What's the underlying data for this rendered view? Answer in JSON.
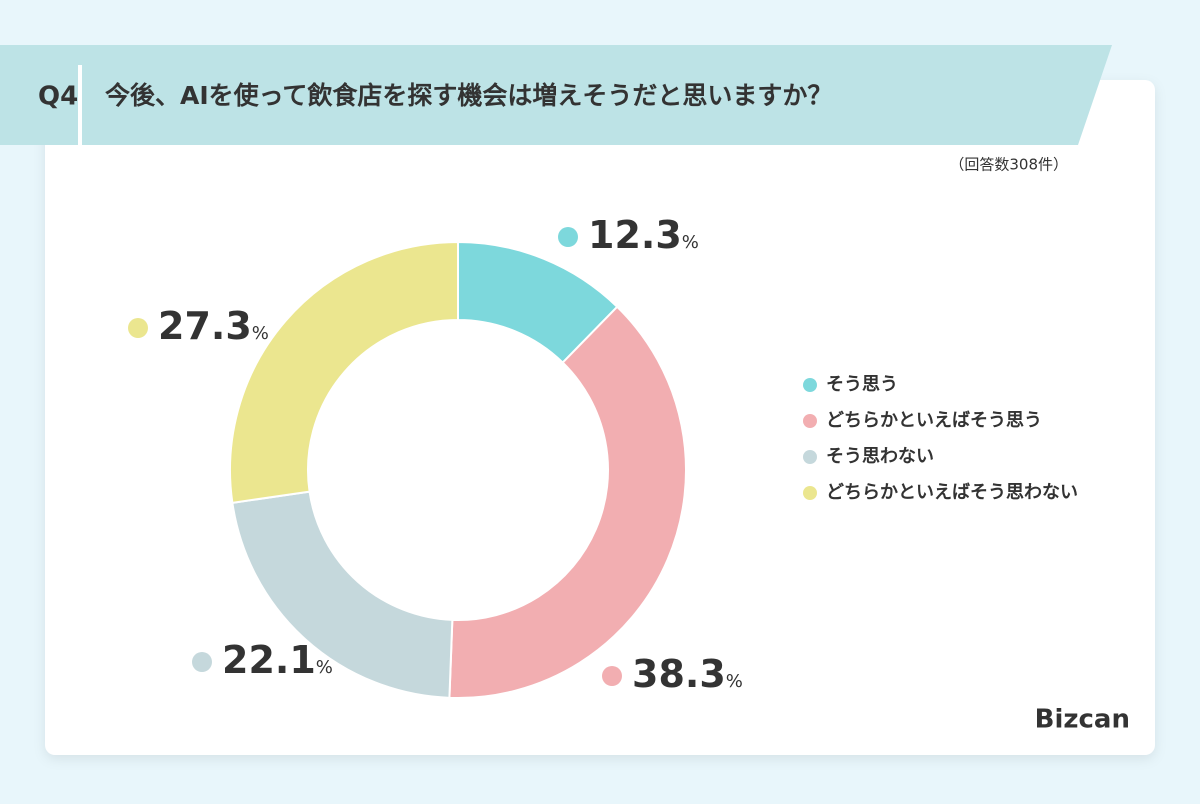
{
  "question_number": "Q4",
  "title": "今後、AIを使って飲食店を探す機会は増えそうだと思いますか？",
  "note": "（回答数308件）",
  "brand": "Bizcan",
  "chart_data": {
    "type": "pie",
    "categories": [
      "そう思う",
      "どちらかといえばそう思う",
      "そう思わない",
      "どちらかといえばそう思わない"
    ],
    "values": [
      12.3,
      38.3,
      22.1,
      27.3
    ],
    "unit": "%",
    "colors": [
      "#7dd8dc",
      "#f2aeb1",
      "#c5d8dc",
      "#ebe68f"
    ],
    "legend": "right"
  }
}
